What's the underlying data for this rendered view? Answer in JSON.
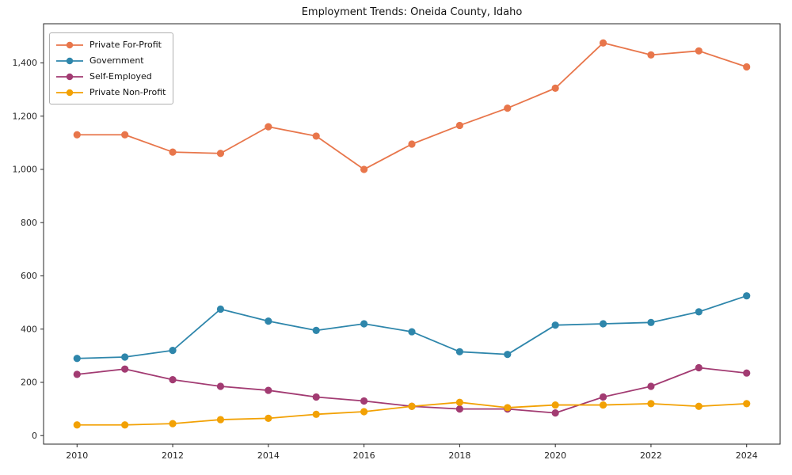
{
  "figure": {
    "background": "#ffffff",
    "axis_color": "#262626",
    "tick_label_color": "#262626"
  },
  "chart_data": {
    "type": "line",
    "title": "Employment Trends: Oneida County, Idaho",
    "xlabel": "",
    "ylabel": "",
    "x": [
      2010,
      2011,
      2012,
      2013,
      2014,
      2015,
      2016,
      2017,
      2018,
      2019,
      2020,
      2021,
      2022,
      2023,
      2024
    ],
    "x_ticks": [
      2010,
      2012,
      2014,
      2016,
      2018,
      2020,
      2022,
      2024
    ],
    "y_ticks": [
      0,
      200,
      400,
      600,
      800,
      1000,
      1200,
      1400
    ],
    "xlim": [
      2009.3,
      2024.7
    ],
    "ylim": [
      -32,
      1547
    ],
    "grid": false,
    "legend_position": "upper-left",
    "series": [
      {
        "name": "Private For-Profit",
        "color": "#E8764B",
        "values": [
          1130,
          1130,
          1065,
          1060,
          1160,
          1125,
          1000,
          1095,
          1165,
          1230,
          1305,
          1475,
          1430,
          1445,
          1385
        ]
      },
      {
        "name": "Government",
        "color": "#2E86AB",
        "values": [
          290,
          295,
          320,
          475,
          430,
          395,
          420,
          390,
          315,
          305,
          415,
          420,
          425,
          465,
          525
        ]
      },
      {
        "name": "Self-Employed",
        "color": "#A23B72",
        "values": [
          230,
          250,
          210,
          185,
          170,
          145,
          130,
          110,
          100,
          100,
          85,
          145,
          185,
          255,
          235
        ]
      },
      {
        "name": "Private Non-Profit",
        "color": "#F2A104",
        "values": [
          40,
          40,
          45,
          60,
          65,
          80,
          90,
          110,
          125,
          105,
          115,
          115,
          120,
          110,
          120
        ]
      }
    ]
  }
}
